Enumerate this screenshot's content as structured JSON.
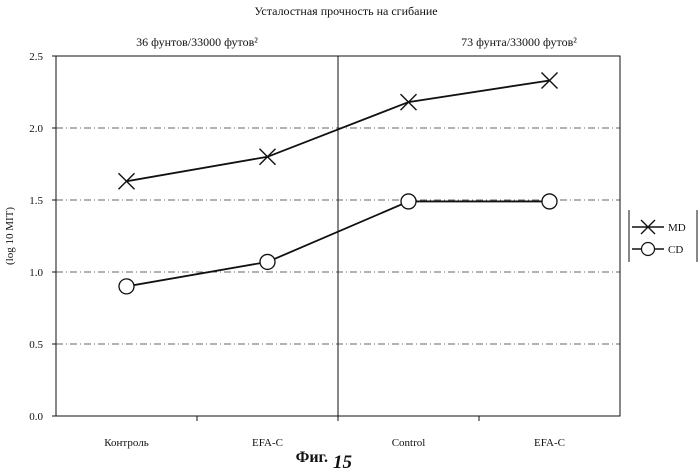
{
  "chart_data": {
    "type": "line",
    "title": "Усталостная  прочность на сгибание",
    "group_labels": [
      "36 фунтов/33000 футов²",
      "73 фунта/33000 футов²"
    ],
    "categories": [
      "Контроль",
      "EFA-C",
      "Control",
      "EFA-C"
    ],
    "ylabel": "(log 10 MIT)",
    "xlabel": "",
    "ylim": [
      0,
      2.5
    ],
    "yticks": [
      "0.0",
      "0.5",
      "1.0",
      "1.5",
      "2.0",
      "2.5"
    ],
    "grid": "horizontal dash-dot",
    "legend_position": "right",
    "series": [
      {
        "name": "MD",
        "marker": "x",
        "values": [
          1.63,
          1.8,
          2.18,
          2.33
        ]
      },
      {
        "name": "CD",
        "marker": "o",
        "values": [
          0.9,
          1.07,
          1.49,
          1.49
        ]
      }
    ]
  },
  "caption": {
    "prefix": "Фиг.",
    "number": "15"
  }
}
